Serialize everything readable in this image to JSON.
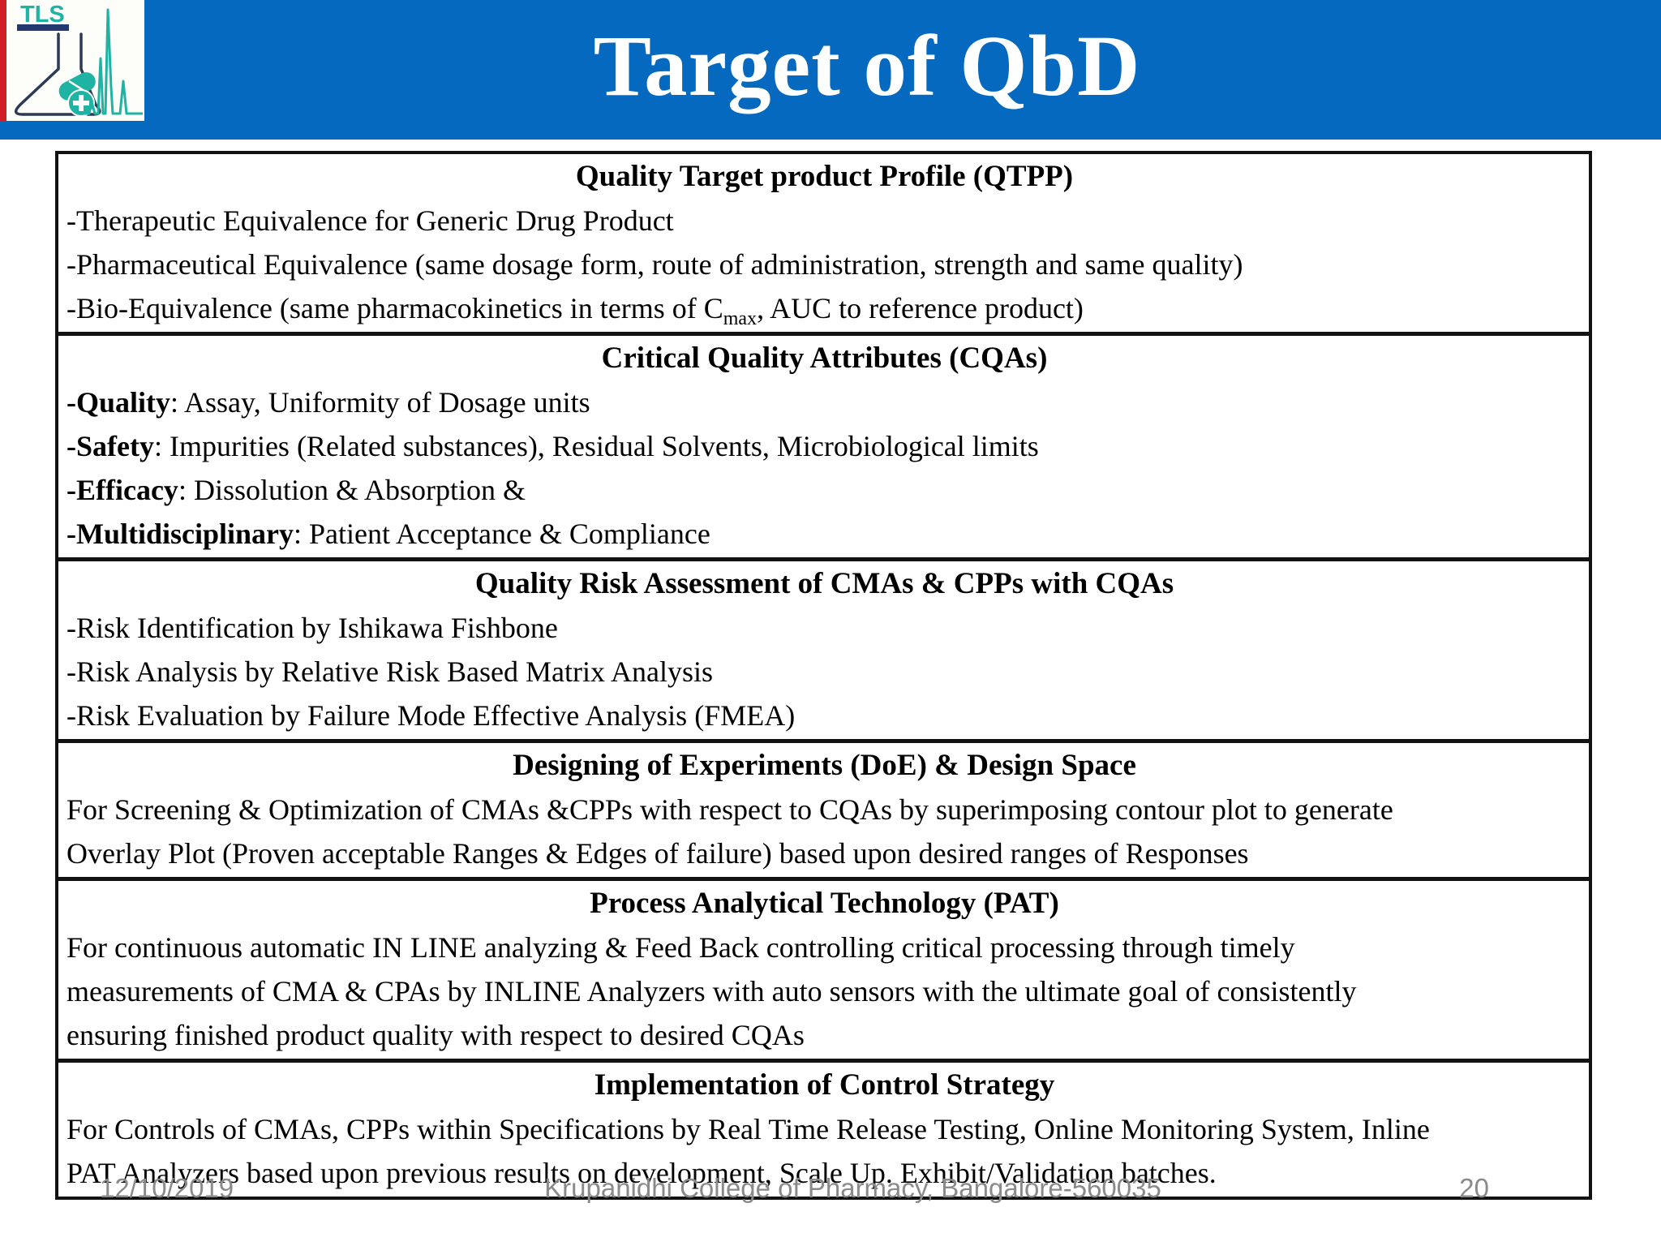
{
  "header": {
    "title": "Target of QbD",
    "logo": {
      "text": "TLS"
    }
  },
  "colors": {
    "header_blue": "#0569c0",
    "accent_red": "#d01f27",
    "logo_teal": "#1fb3a4",
    "logo_navy": "#22386e",
    "table_border": "#121212",
    "footer_gray": "#8a8a8a"
  },
  "table": {
    "sections": [
      {
        "heading": "Quality Target product Profile (QTPP)",
        "lines": [
          [
            {
              "t": "-Therapeutic Equivalence for Generic Drug Product"
            }
          ],
          [
            {
              "t": "-Pharmaceutical Equivalence (same dosage form, route of administration, strength and same quality)"
            }
          ],
          [
            {
              "t": "-Bio-Equivalence (same pharmacokinetics in terms of C"
            },
            {
              "t": "max",
              "sub": true
            },
            {
              "t": ", AUC to reference product)"
            }
          ]
        ]
      },
      {
        "heading": "Critical Quality Attributes (CQAs)",
        "lines": [
          [
            {
              "t": "-Quality",
              "bold": true
            },
            {
              "t": ": Assay, Uniformity of Dosage units"
            }
          ],
          [
            {
              "t": "-Safety",
              "bold": true
            },
            {
              "t": ": Impurities (Related substances), Residual Solvents, Microbiological limits"
            }
          ],
          [
            {
              "t": "-Efficacy",
              "bold": true
            },
            {
              "t": ": Dissolution & Absorption &"
            }
          ],
          [
            {
              "t": "-Multidisciplinary",
              "bold": true
            },
            {
              "t": ": Patient Acceptance & Compliance"
            }
          ]
        ]
      },
      {
        "heading": "Quality Risk Assessment of CMAs & CPPs with CQAs",
        "lines": [
          [
            {
              "t": "-Risk Identification by Ishikawa Fishbone"
            }
          ],
          [
            {
              "t": "-Risk Analysis by Relative Risk Based Matrix Analysis"
            }
          ],
          [
            {
              "t": "-Risk Evaluation by Failure Mode Effective Analysis (FMEA)"
            }
          ]
        ]
      },
      {
        "heading": "Designing of Experiments (DoE) & Design Space",
        "lines": [
          [
            {
              "t": "For Screening & Optimization of CMAs &CPPs with respect to CQAs by superimposing contour plot to generate"
            }
          ],
          [
            {
              "t": "Overlay Plot (Proven acceptable Ranges & Edges of failure) based upon desired ranges of Responses"
            }
          ]
        ]
      },
      {
        "heading": "Process Analytical Technology (PAT)",
        "lines": [
          [
            {
              "t": "For continuous automatic IN LINE analyzing & Feed Back controlling critical processing through timely"
            }
          ],
          [
            {
              "t": "measurements of CMA & CPAs by INLINE Analyzers with auto sensors with the ultimate goal of consistently"
            }
          ],
          [
            {
              "t": "ensuring finished product quality with respect to desired CQAs"
            }
          ]
        ]
      },
      {
        "heading": "Implementation of Control Strategy",
        "lines": [
          [
            {
              "t": "For Controls of CMAs, CPPs within Specifications by Real Time Release Testing, Online Monitoring System, Inline"
            }
          ],
          [
            {
              "t": "PAT Analyzers based upon previous results on development, Scale Up. Exhibit/Validation batches."
            }
          ]
        ]
      }
    ]
  },
  "footer": {
    "date": "12/10/2019",
    "center": "Krupanidhi College of Pharmacy, Bangalore-560035",
    "page": "20"
  }
}
